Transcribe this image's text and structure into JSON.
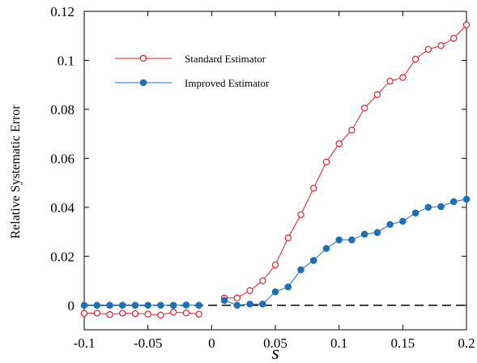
{
  "chart_data": {
    "type": "line",
    "xlabel": "s",
    "ylabel": "Relative Systematic Error",
    "xlim": [
      -0.1,
      0.2
    ],
    "ylim": [
      -0.01,
      0.12
    ],
    "xticks": [
      -0.1,
      -0.05,
      0,
      0.05,
      0.1,
      0.15,
      0.2
    ],
    "xtick_labels": [
      "-0.1",
      "-0.05",
      "0",
      "0.05",
      "0.1",
      "0.15",
      "0.2"
    ],
    "yticks": [
      0,
      0.02,
      0.04,
      0.06,
      0.08,
      0.1,
      0.12
    ],
    "ytick_labels": [
      "0",
      "0.02",
      "0.04",
      "0.06",
      "0.08",
      "0.1",
      "0.12"
    ],
    "grid": false,
    "legend_position": "top-left",
    "reference_line": {
      "y": 0,
      "style": "dashed"
    },
    "series": [
      {
        "name": "Standard Estimator",
        "color": "#e8202a",
        "marker": "open-circle",
        "segments": [
          {
            "x": [
              -0.1,
              -0.09,
              -0.08,
              -0.07,
              -0.06,
              -0.05,
              -0.04,
              -0.03,
              -0.02,
              -0.01
            ],
            "y": [
              -0.0033,
              -0.0032,
              -0.0038,
              -0.0032,
              -0.0034,
              -0.0036,
              -0.004,
              -0.0028,
              -0.0031,
              -0.0036
            ]
          },
          {
            "x": [
              0.01,
              0.02,
              0.03,
              0.04,
              0.05,
              0.06,
              0.07,
              0.08,
              0.09,
              0.1,
              0.11,
              0.12,
              0.13,
              0.14,
              0.15,
              0.16,
              0.17,
              0.18,
              0.19,
              0.2
            ],
            "y": [
              0.003,
              0.003,
              0.006,
              0.01,
              0.0165,
              0.0275,
              0.037,
              0.0478,
              0.0585,
              0.066,
              0.0715,
              0.0805,
              0.086,
              0.0915,
              0.093,
              0.1005,
              0.1045,
              0.106,
              0.109,
              0.1145
            ]
          }
        ]
      },
      {
        "name": "Improved Estimator",
        "color": "#1f6fb5",
        "marker": "filled-circle",
        "segments": [
          {
            "x": [
              -0.1,
              -0.09,
              -0.08,
              -0.07,
              -0.06,
              -0.05,
              -0.04,
              -0.03,
              -0.02,
              -0.01
            ],
            "y": [
              0.0,
              0.0,
              0.0,
              0.0,
              0.0,
              0.0,
              0.0,
              0.0,
              0.0001,
              0.0
            ]
          },
          {
            "x": [
              0.01,
              0.02,
              0.03,
              0.04,
              0.05,
              0.06,
              0.07,
              0.08,
              0.09,
              0.1,
              0.11,
              0.12,
              0.13,
              0.14,
              0.15,
              0.16,
              0.17,
              0.18,
              0.19,
              0.2
            ],
            "y": [
              0.002,
              0.0,
              0.0005,
              0.0005,
              0.0055,
              0.0075,
              0.0145,
              0.0183,
              0.0232,
              0.0267,
              0.0267,
              0.029,
              0.0297,
              0.033,
              0.0343,
              0.0377,
              0.04,
              0.0403,
              0.0423,
              0.0433
            ]
          }
        ]
      }
    ]
  }
}
